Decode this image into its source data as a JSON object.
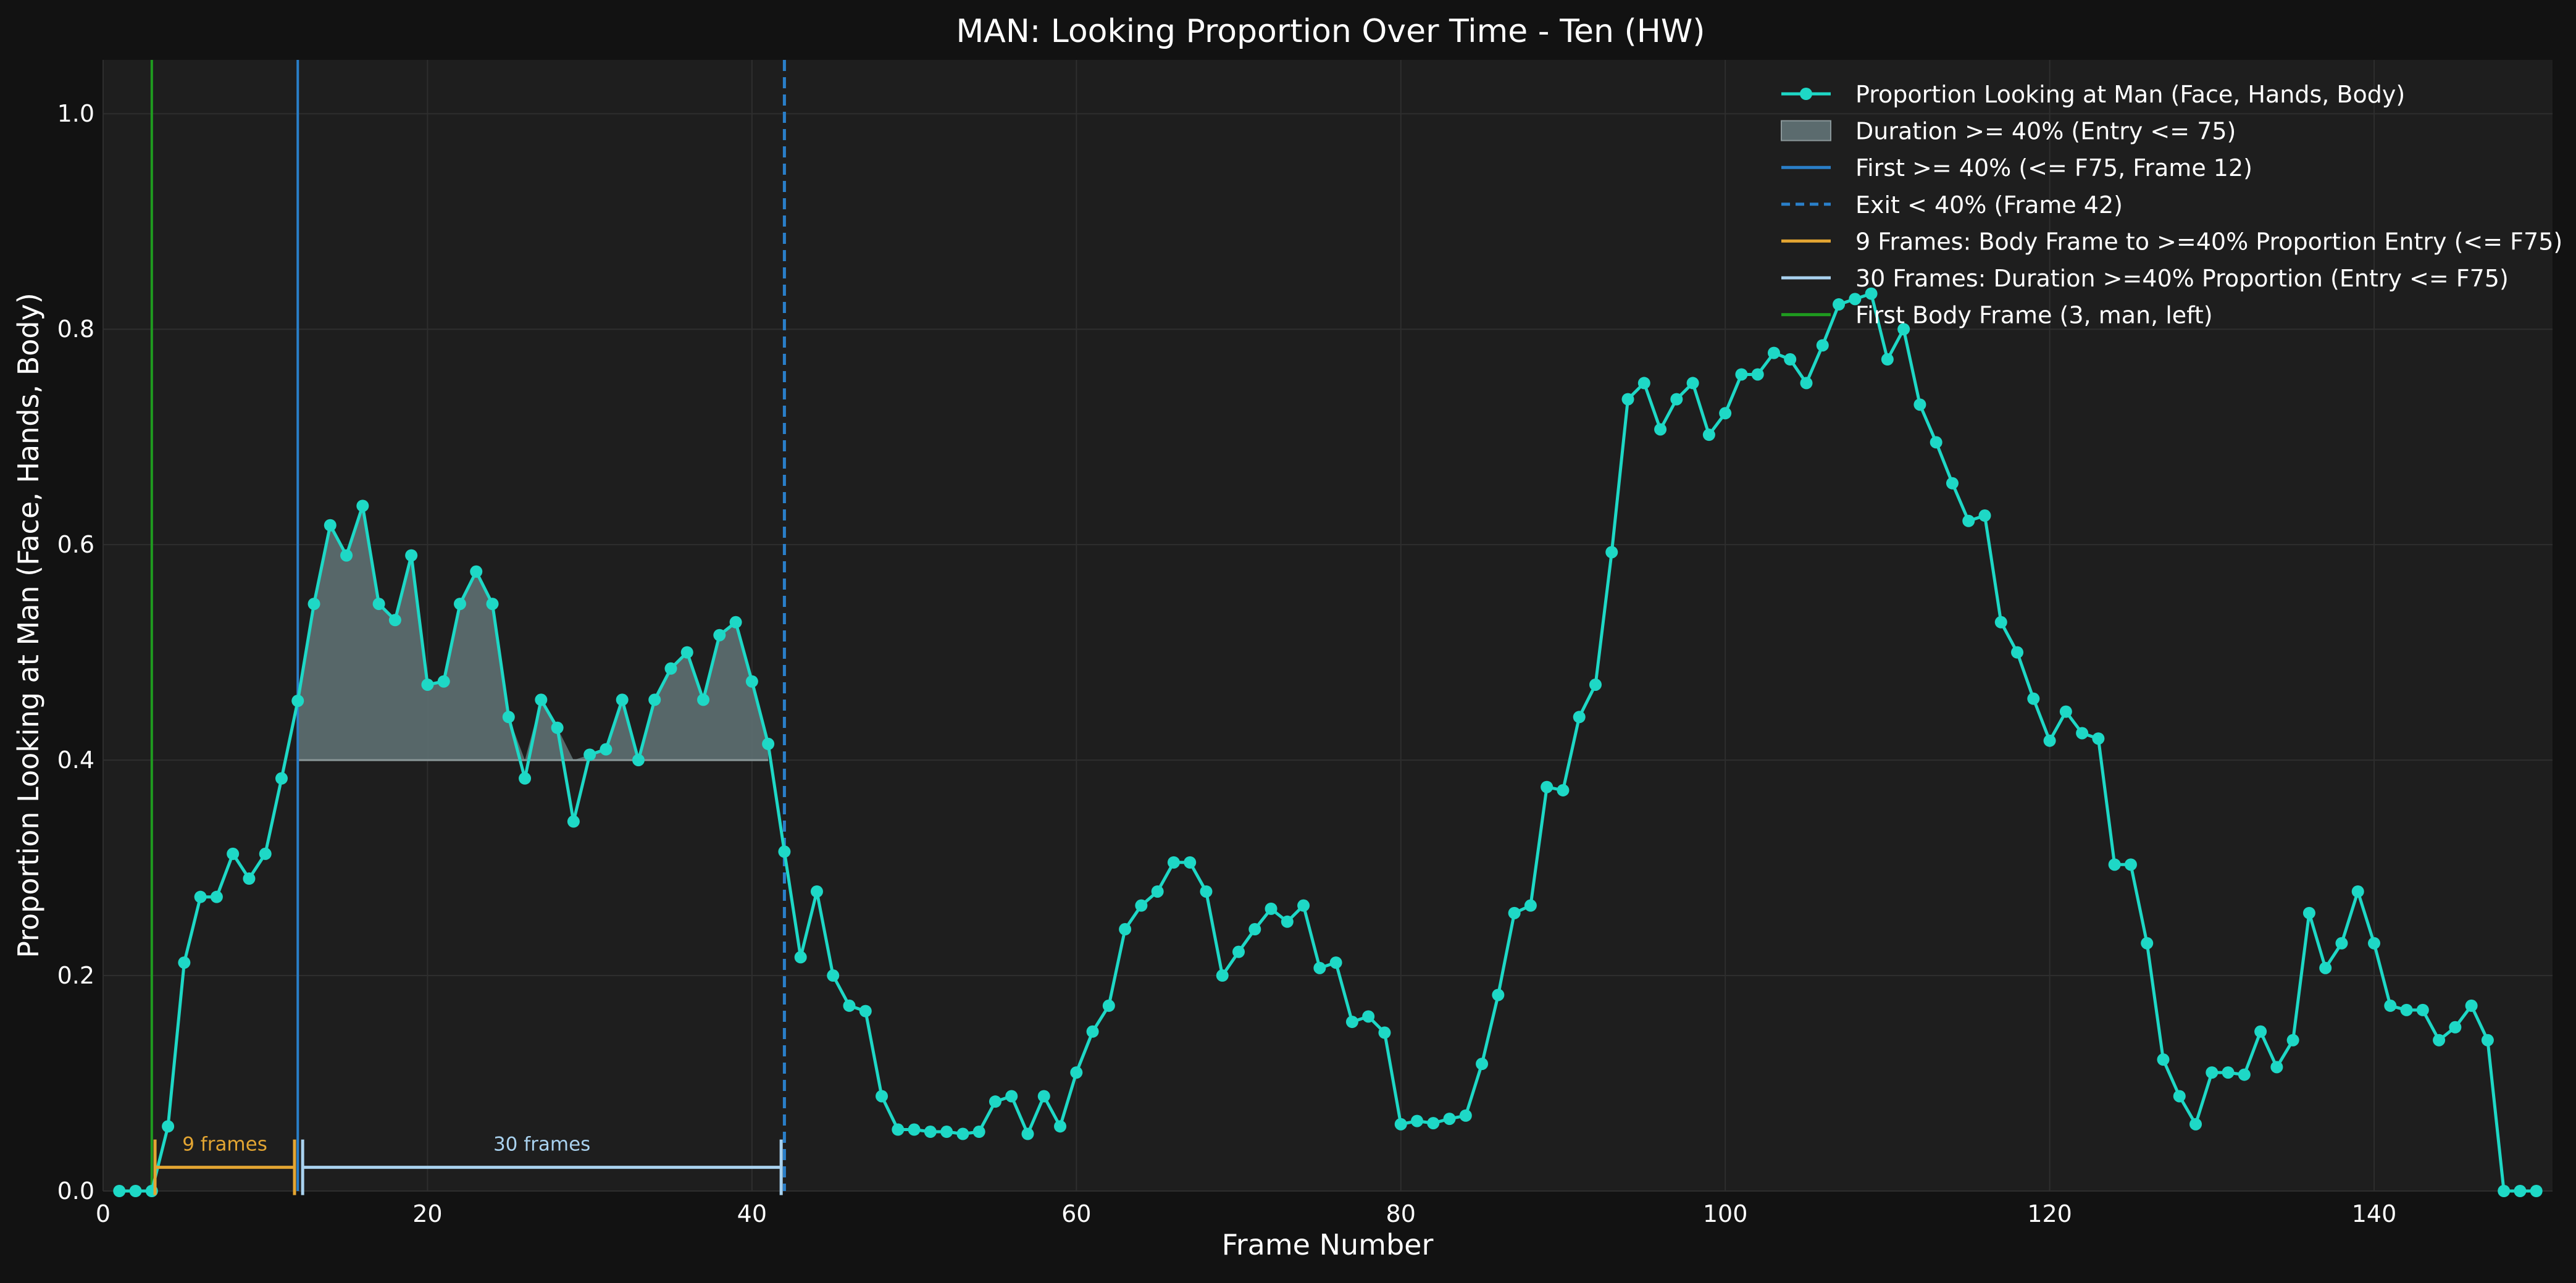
{
  "chart_data": {
    "type": "line",
    "title": "MAN: Looking Proportion Over Time - Ten (HW)",
    "xlabel": "Frame Number",
    "ylabel": "Proportion Looking at Man (Face, Hands, Body)",
    "xlim": [
      0,
      151
    ],
    "ylim": [
      0,
      1.05
    ],
    "xticks": [
      0,
      20,
      40,
      60,
      80,
      100,
      120,
      140
    ],
    "yticks": [
      0.0,
      0.2,
      0.4,
      0.6,
      0.8,
      1.0
    ],
    "grid": true,
    "legend_position": "top-right",
    "colors": {
      "figure_bg": "#121212",
      "axes_bg": "#1e1e1e",
      "series": "#1ed8c6",
      "fill": "#5b6b6e",
      "first_line": "#2a7fc9",
      "exit_line": "#2a7fc9",
      "body_line": "#1f9b1f",
      "bracket_9": "#e3a532",
      "bracket_30": "#a9d2ef"
    },
    "series": [
      {
        "name": "Proportion Looking at Man (Face, Hands, Body)",
        "x": [
          1,
          2,
          3,
          4,
          5,
          6,
          7,
          8,
          9,
          10,
          11,
          12,
          13,
          14,
          15,
          16,
          17,
          18,
          19,
          20,
          21,
          22,
          23,
          24,
          25,
          26,
          27,
          28,
          29,
          30,
          31,
          32,
          33,
          34,
          35,
          36,
          37,
          38,
          39,
          40,
          41,
          42,
          43,
          44,
          45,
          46,
          47,
          48,
          49,
          50,
          51,
          52,
          53,
          54,
          55,
          56,
          57,
          58,
          59,
          60,
          61,
          62,
          63,
          64,
          65,
          66,
          67,
          68,
          69,
          70,
          71,
          72,
          73,
          74,
          75,
          76,
          77,
          78,
          79,
          80,
          81,
          82,
          83,
          84,
          85,
          86,
          87,
          88,
          89,
          90,
          91,
          92,
          93,
          94,
          95,
          96,
          97,
          98,
          99,
          100,
          101,
          102,
          103,
          104,
          105,
          106,
          107,
          108,
          109,
          110,
          111,
          112,
          113,
          114,
          115,
          116,
          117,
          118,
          119,
          120,
          121,
          122,
          123,
          124,
          125,
          126,
          127,
          128,
          129,
          130,
          131,
          132,
          133,
          134,
          135,
          136,
          137,
          138,
          139,
          140,
          141,
          142,
          143,
          144,
          145,
          146,
          147,
          148,
          149,
          150
        ],
        "y": [
          0.0,
          0.0,
          0.0,
          0.06,
          0.212,
          0.273,
          0.273,
          0.313,
          0.29,
          0.313,
          0.383,
          0.455,
          0.545,
          0.618,
          0.59,
          0.636,
          0.545,
          0.53,
          0.59,
          0.47,
          0.473,
          0.545,
          0.575,
          0.545,
          0.44,
          0.383,
          0.456,
          0.43,
          0.343,
          0.405,
          0.41,
          0.456,
          0.4,
          0.456,
          0.485,
          0.5,
          0.456,
          0.516,
          0.528,
          0.473,
          0.415,
          0.315,
          0.217,
          0.278,
          0.2,
          0.172,
          0.167,
          0.088,
          0.057,
          0.057,
          0.055,
          0.055,
          0.053,
          0.055,
          0.083,
          0.088,
          0.053,
          0.088,
          0.06,
          0.11,
          0.148,
          0.172,
          0.243,
          0.265,
          0.278,
          0.305,
          0.305,
          0.278,
          0.2,
          0.222,
          0.243,
          0.262,
          0.25,
          0.265,
          0.207,
          0.212,
          0.157,
          0.162,
          0.147,
          0.062,
          0.065,
          0.063,
          0.067,
          0.07,
          0.118,
          0.182,
          0.258,
          0.265,
          0.375,
          0.372,
          0.44,
          0.47,
          0.593,
          0.735,
          0.75,
          0.707,
          0.735,
          0.75,
          0.702,
          0.722,
          0.758,
          0.758,
          0.778,
          0.772,
          0.75,
          0.785,
          0.823,
          0.828,
          0.833,
          0.772,
          0.8,
          0.73,
          0.695,
          0.657,
          0.622,
          0.627,
          0.528,
          0.5,
          0.457,
          0.418,
          0.445,
          0.425,
          0.42,
          0.303,
          0.303,
          0.23,
          0.122,
          0.088,
          0.062,
          0.11,
          0.11,
          0.108,
          0.148,
          0.115,
          0.14,
          0.258,
          0.207,
          0.23,
          0.278,
          0.23,
          0.172,
          0.168,
          0.168,
          0.14,
          0.152,
          0.172,
          0.14,
          0.0,
          0.0,
          0.0
        ]
      }
    ],
    "threshold": 0.4,
    "fill_range": [
      12,
      41
    ],
    "body_frame": 3,
    "first_frame": 12,
    "exit_frame": 42,
    "brackets": [
      {
        "label": "9 frames",
        "x_start": 3.2,
        "x_end": 11.8,
        "y": 0.022
      },
      {
        "label": "30 frames",
        "x_start": 12.3,
        "x_end": 41.8,
        "y": 0.022
      }
    ],
    "legend": [
      {
        "label": "Proportion Looking at Man (Face, Hands, Body)",
        "kind": "line-marker",
        "color": "#1ed8c6"
      },
      {
        "label": "Duration >= 40% (Entry <= 75)",
        "kind": "patch",
        "color": "#5b6b6e"
      },
      {
        "label": "First >= 40% (<= F75, Frame 12)",
        "kind": "line",
        "color": "#2a7fc9"
      },
      {
        "label": "Exit < 40% (Frame 42)",
        "kind": "dashed",
        "color": "#2a7fc9"
      },
      {
        "label": "9 Frames: Body Frame to >=40% Proportion Entry (<= F75)",
        "kind": "line",
        "color": "#e3a532"
      },
      {
        "label": "30 Frames: Duration >=40% Proportion (Entry <= F75)",
        "kind": "line",
        "color": "#a9d2ef"
      },
      {
        "label": "First Body Frame (3, man, left)",
        "kind": "line",
        "color": "#1f9b1f"
      }
    ]
  }
}
